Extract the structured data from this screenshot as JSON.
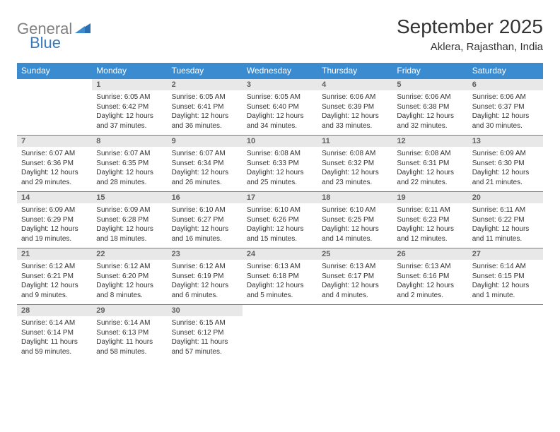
{
  "logo": {
    "text1": "General",
    "text2": "Blue",
    "gray": "#808080",
    "blue": "#3478c0"
  },
  "title": "September 2025",
  "location": "Aklera, Rajasthan, India",
  "header_bg": "#3b8bd0",
  "header_fg": "#ffffff",
  "daynum_bg": "#e8e8e8",
  "daynum_fg": "#606060",
  "border_color": "#3b8bd0",
  "text_color": "#333333",
  "page_bg": "#ffffff",
  "day_names": [
    "Sunday",
    "Monday",
    "Tuesday",
    "Wednesday",
    "Thursday",
    "Friday",
    "Saturday"
  ],
  "first_weekday": 1,
  "days": [
    {
      "n": 1,
      "sr": "6:05 AM",
      "ss": "6:42 PM",
      "dl": "12 hours and 37 minutes."
    },
    {
      "n": 2,
      "sr": "6:05 AM",
      "ss": "6:41 PM",
      "dl": "12 hours and 36 minutes."
    },
    {
      "n": 3,
      "sr": "6:05 AM",
      "ss": "6:40 PM",
      "dl": "12 hours and 34 minutes."
    },
    {
      "n": 4,
      "sr": "6:06 AM",
      "ss": "6:39 PM",
      "dl": "12 hours and 33 minutes."
    },
    {
      "n": 5,
      "sr": "6:06 AM",
      "ss": "6:38 PM",
      "dl": "12 hours and 32 minutes."
    },
    {
      "n": 6,
      "sr": "6:06 AM",
      "ss": "6:37 PM",
      "dl": "12 hours and 30 minutes."
    },
    {
      "n": 7,
      "sr": "6:07 AM",
      "ss": "6:36 PM",
      "dl": "12 hours and 29 minutes."
    },
    {
      "n": 8,
      "sr": "6:07 AM",
      "ss": "6:35 PM",
      "dl": "12 hours and 28 minutes."
    },
    {
      "n": 9,
      "sr": "6:07 AM",
      "ss": "6:34 PM",
      "dl": "12 hours and 26 minutes."
    },
    {
      "n": 10,
      "sr": "6:08 AM",
      "ss": "6:33 PM",
      "dl": "12 hours and 25 minutes."
    },
    {
      "n": 11,
      "sr": "6:08 AM",
      "ss": "6:32 PM",
      "dl": "12 hours and 23 minutes."
    },
    {
      "n": 12,
      "sr": "6:08 AM",
      "ss": "6:31 PM",
      "dl": "12 hours and 22 minutes."
    },
    {
      "n": 13,
      "sr": "6:09 AM",
      "ss": "6:30 PM",
      "dl": "12 hours and 21 minutes."
    },
    {
      "n": 14,
      "sr": "6:09 AM",
      "ss": "6:29 PM",
      "dl": "12 hours and 19 minutes."
    },
    {
      "n": 15,
      "sr": "6:09 AM",
      "ss": "6:28 PM",
      "dl": "12 hours and 18 minutes."
    },
    {
      "n": 16,
      "sr": "6:10 AM",
      "ss": "6:27 PM",
      "dl": "12 hours and 16 minutes."
    },
    {
      "n": 17,
      "sr": "6:10 AM",
      "ss": "6:26 PM",
      "dl": "12 hours and 15 minutes."
    },
    {
      "n": 18,
      "sr": "6:10 AM",
      "ss": "6:25 PM",
      "dl": "12 hours and 14 minutes."
    },
    {
      "n": 19,
      "sr": "6:11 AM",
      "ss": "6:23 PM",
      "dl": "12 hours and 12 minutes."
    },
    {
      "n": 20,
      "sr": "6:11 AM",
      "ss": "6:22 PM",
      "dl": "12 hours and 11 minutes."
    },
    {
      "n": 21,
      "sr": "6:12 AM",
      "ss": "6:21 PM",
      "dl": "12 hours and 9 minutes."
    },
    {
      "n": 22,
      "sr": "6:12 AM",
      "ss": "6:20 PM",
      "dl": "12 hours and 8 minutes."
    },
    {
      "n": 23,
      "sr": "6:12 AM",
      "ss": "6:19 PM",
      "dl": "12 hours and 6 minutes."
    },
    {
      "n": 24,
      "sr": "6:13 AM",
      "ss": "6:18 PM",
      "dl": "12 hours and 5 minutes."
    },
    {
      "n": 25,
      "sr": "6:13 AM",
      "ss": "6:17 PM",
      "dl": "12 hours and 4 minutes."
    },
    {
      "n": 26,
      "sr": "6:13 AM",
      "ss": "6:16 PM",
      "dl": "12 hours and 2 minutes."
    },
    {
      "n": 27,
      "sr": "6:14 AM",
      "ss": "6:15 PM",
      "dl": "12 hours and 1 minute."
    },
    {
      "n": 28,
      "sr": "6:14 AM",
      "ss": "6:14 PM",
      "dl": "11 hours and 59 minutes."
    },
    {
      "n": 29,
      "sr": "6:14 AM",
      "ss": "6:13 PM",
      "dl": "11 hours and 58 minutes."
    },
    {
      "n": 30,
      "sr": "6:15 AM",
      "ss": "6:12 PM",
      "dl": "11 hours and 57 minutes."
    }
  ],
  "labels": {
    "sunrise": "Sunrise:",
    "sunset": "Sunset:",
    "daylight": "Daylight:"
  }
}
